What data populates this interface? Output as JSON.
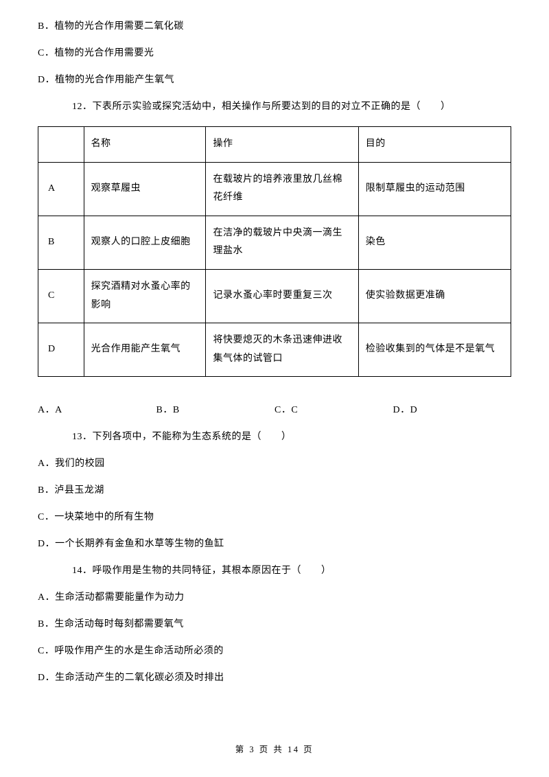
{
  "options_before": [
    "B．植物的光合作用需要二氧化碳",
    "C．植物的光合作用需要光",
    "D．植物的光合作用能产生氧气"
  ],
  "q12": {
    "text": "12．下表所示实验或探究活幼中，相关操作与所要达到的目的对立不正确的是（　　）",
    "table": {
      "header": [
        "",
        "名称",
        "操作",
        "目的"
      ],
      "rows": [
        [
          "A",
          "观察草履虫",
          "在载玻片的培养液里放几丝棉花纤维",
          "限制草履虫的运动范围"
        ],
        [
          "B",
          "观察人的口腔上皮细胞",
          "在洁净的载玻片中央滴一滴生理盐水",
          "染色"
        ],
        [
          "C",
          "探究酒精对水蚤心率的影响",
          "记录水蚤心率时要重复三次",
          "使实验数据更准确"
        ],
        [
          "D",
          "光合作用能产生氧气",
          "将快要熄灭的木条迅速伸进收集气体的试管口",
          "检验收集到的气体是不是氧气"
        ]
      ]
    },
    "answers": [
      "A．A",
      "B．B",
      "C．C",
      "D．D"
    ]
  },
  "q13": {
    "text": "13．下列各项中，不能称为生态系统的是（　　）",
    "options": [
      "A．我们的校园",
      "B．泸县玉龙湖",
      "C．一块菜地中的所有生物",
      "D．一个长期养有金鱼和水草等生物的鱼缸"
    ]
  },
  "q14": {
    "text": "14．呼吸作用是生物的共同特征，其根本原因在于（　　）",
    "options": [
      "A．生命活动都需要能量作为动力",
      "B．生命活动每时每刻都需要氧气",
      "C．呼吸作用产生的水是生命活动所必须的",
      "D．生命活动产生的二氧化碳必须及时排出"
    ]
  },
  "footer": "第 3 页 共 14 页"
}
